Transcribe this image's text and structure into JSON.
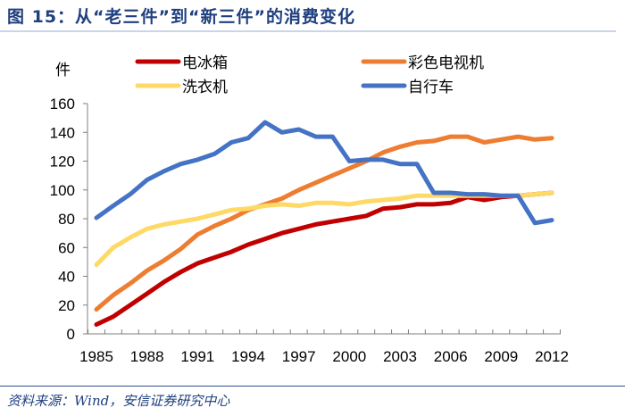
{
  "header": {
    "title": "图 15：从“老三件”到“新三件”的消费变化"
  },
  "footer": {
    "source": "资料来源：Wind，安信证券研究中心"
  },
  "chart_data": {
    "type": "line",
    "title": "图 15：从“老三件”到“新三件”的消费变化",
    "xlabel": "",
    "ylabel": "件",
    "ylim": [
      0,
      160
    ],
    "yticks": [
      0,
      20,
      40,
      60,
      80,
      100,
      120,
      140,
      160
    ],
    "xticks": [
      1985,
      1988,
      1991,
      1994,
      1997,
      2000,
      2003,
      2006,
      2009,
      2012
    ],
    "grid": false,
    "legend_position": "top",
    "x": [
      1985,
      1986,
      1987,
      1988,
      1989,
      1990,
      1991,
      1992,
      1993,
      1994,
      1995,
      1996,
      1997,
      1998,
      1999,
      2000,
      2001,
      2002,
      2003,
      2004,
      2005,
      2006,
      2007,
      2008,
      2009,
      2010,
      2011,
      2012
    ],
    "series": [
      {
        "name": "电冰箱",
        "color": "#c00000",
        "values": [
          6.5,
          12,
          20,
          28,
          36,
          43,
          49,
          53,
          57,
          62,
          66,
          70,
          73,
          76,
          78,
          80,
          82,
          87,
          88,
          90,
          90,
          91,
          95,
          93,
          95,
          96,
          97,
          98
        ]
      },
      {
        "name": "彩色电视机",
        "color": "#ed7d31",
        "values": [
          17,
          27,
          35,
          44,
          51,
          59,
          69,
          75,
          80,
          86,
          90,
          94,
          100,
          105,
          110,
          115,
          120,
          126,
          130,
          133,
          134,
          137,
          137,
          133,
          135,
          137,
          135,
          136
        ]
      },
      {
        "name": "洗衣机",
        "color": "#ffd966",
        "values": [
          48,
          60,
          67,
          73,
          76,
          78,
          80,
          83,
          86,
          87,
          89,
          90,
          89,
          91,
          91,
          90,
          92,
          93,
          94,
          96,
          96,
          96,
          96,
          96,
          96,
          96,
          97,
          98
        ]
      },
      {
        "name": "自行车",
        "color": "#4472c4",
        "values": [
          80.6,
          89,
          97,
          107,
          113,
          118,
          121,
          125,
          133,
          136,
          147,
          140,
          142,
          137,
          137,
          120,
          121,
          121,
          118,
          118,
          98,
          98,
          97,
          97,
          96,
          96,
          77,
          79
        ]
      }
    ],
    "legend_order": [
      0,
      1,
      2,
      3
    ]
  }
}
